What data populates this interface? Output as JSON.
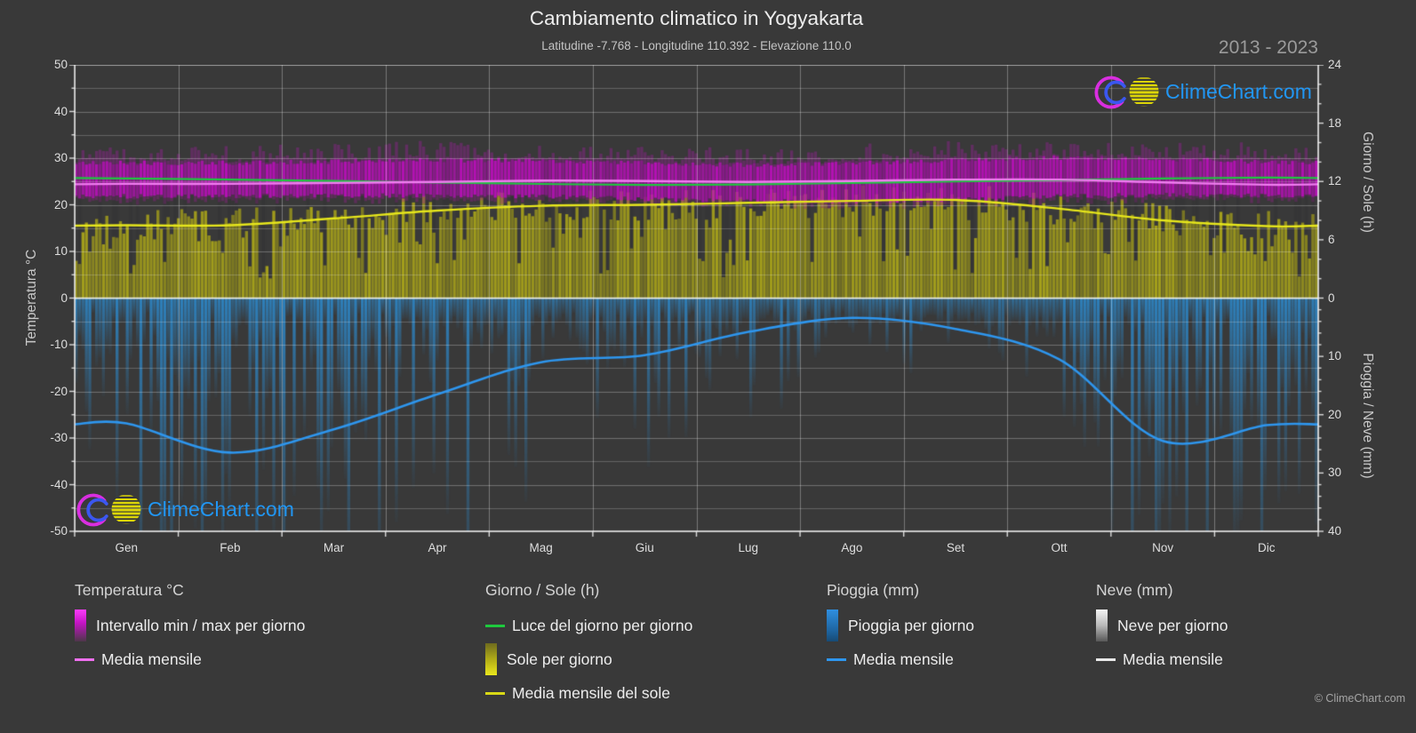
{
  "colors": {
    "background": "#393939",
    "brand_blue": "#2196f3",
    "logo_magenta": "#d92ee0",
    "logo_blue": "#3b57f0",
    "logo_yellow": "#ddd608",
    "temp_band": "#bc0ebc",
    "temp_mean_line": "#f07df0",
    "daylight_line": "#1ec93e",
    "sun_fill": "#a7a21a",
    "sun_mean_line": "#e6e61c",
    "rain_fill": "#2d87c8",
    "rain_mean_line": "#2e96ee",
    "snow_fill": "#e8e8e8",
    "snow_mean_line": "#e8e8e8"
  },
  "header": {
    "title": "Cambiamento climatico in Yogyakarta",
    "subtitle": "Latitudine -7.768 - Longitudine 110.392 - Elevazione 110.0",
    "year_range": "2013 - 2023"
  },
  "watermark": {
    "text": "ClimeChart.com"
  },
  "footer": {
    "copyright": "© ClimeChart.com"
  },
  "axes": {
    "left": {
      "title": "Temperatura °C",
      "range": [
        -50,
        50
      ],
      "major_ticks": [
        50,
        40,
        30,
        20,
        10,
        0,
        -10,
        -20,
        -30,
        -40,
        -50
      ]
    },
    "right_top": {
      "title": "Giorno / Sole (h)",
      "range": [
        0,
        24
      ],
      "major_ticks": [
        24,
        18,
        12,
        6,
        0
      ]
    },
    "right_bottom": {
      "title": "Pioggia / Neve (mm)",
      "range": [
        0,
        40
      ],
      "inverted": true,
      "major_ticks": [
        10,
        20,
        30,
        40
      ]
    },
    "x": {
      "gridlines": "month-boundaries"
    }
  },
  "legend": {
    "groups": [
      {
        "title": "Temperatura °C",
        "items": [
          {
            "kind": "box",
            "swatch": "magenta-gradient",
            "label": "Intervallo min / max per giorno"
          },
          {
            "kind": "line",
            "swatch": "magenta-line",
            "label": "Media mensile"
          }
        ]
      },
      {
        "title": "Giorno / Sole (h)",
        "items": [
          {
            "kind": "line",
            "swatch": "green-line",
            "label": "Luce del giorno per giorno"
          },
          {
            "kind": "box",
            "swatch": "yellow-gradient",
            "label": "Sole per giorno"
          },
          {
            "kind": "line",
            "swatch": "yellow-line",
            "label": "Media mensile del sole"
          }
        ]
      },
      {
        "title": "Pioggia (mm)",
        "items": [
          {
            "kind": "box",
            "swatch": "blue-gradient",
            "label": "Pioggia per giorno"
          },
          {
            "kind": "line",
            "swatch": "blue-line",
            "label": "Media mensile"
          }
        ]
      },
      {
        "title": "Neve (mm)",
        "items": [
          {
            "kind": "box",
            "swatch": "white-gradient",
            "label": "Neve per giorno"
          },
          {
            "kind": "line",
            "swatch": "white-line",
            "label": "Media mensile"
          }
        ]
      }
    ]
  },
  "chart_data": {
    "type": "area",
    "title": "Cambiamento climatico in Yogyakarta",
    "categories": [
      "Gen",
      "Feb",
      "Mar",
      "Apr",
      "Mag",
      "Giu",
      "Lug",
      "Ago",
      "Set",
      "Ott",
      "Nov",
      "Dic"
    ],
    "axis_ranges": {
      "temperatura_c": [
        -50,
        50
      ],
      "giorno_sole_h": [
        0,
        24
      ],
      "pioggia_neve_mm": [
        0,
        40
      ]
    },
    "grid": {
      "horizontal_step_c": 5,
      "vertical": "month-boundaries"
    },
    "series": [
      {
        "name": "Luce del giorno per giorno",
        "unit": "h",
        "type": "line",
        "color": "#1ec93e",
        "values": [
          12.3,
          12.2,
          12.05,
          11.9,
          11.75,
          11.65,
          11.7,
          11.85,
          12.0,
          12.15,
          12.3,
          12.4
        ]
      },
      {
        "name": "Media mensile temperatura",
        "unit": "°C",
        "type": "line",
        "color": "#f07df0",
        "values": [
          24.5,
          24.5,
          24.7,
          24.9,
          25.2,
          25.1,
          24.9,
          25.1,
          25.4,
          25.4,
          24.8,
          24.3
        ]
      },
      {
        "name": "Media mensile del sole",
        "unit": "h",
        "type": "line",
        "color": "#e6e61c",
        "values": [
          7.5,
          7.5,
          8.2,
          9.0,
          9.5,
          9.6,
          9.8,
          10.0,
          10.1,
          9.2,
          8.0,
          7.4
        ]
      },
      {
        "name": "Media mensile pioggia",
        "unit": "mm",
        "type": "line",
        "color": "#2e96ee",
        "values": [
          21.5,
          26.5,
          22.5,
          16.5,
          11.0,
          9.8,
          5.8,
          3.4,
          5.3,
          10.5,
          24.5,
          21.8
        ]
      },
      {
        "name": "Media mensile neve",
        "unit": "mm",
        "type": "line",
        "color": "#e8e8e8",
        "values": [
          0,
          0,
          0,
          0,
          0,
          0,
          0,
          0,
          0,
          0,
          0,
          0
        ]
      },
      {
        "name": "Intervallo min / max per giorno (massima)",
        "unit": "°C",
        "type": "band-upper",
        "color": "#bc0ebc",
        "values": [
          29.0,
          29.0,
          29.3,
          29.6,
          29.5,
          29.0,
          28.6,
          28.9,
          29.6,
          30.1,
          29.9,
          29.2
        ]
      },
      {
        "name": "Intervallo min / max per giorno (minima)",
        "unit": "°C",
        "type": "band-lower",
        "color": "#bc0ebc",
        "values": [
          21.8,
          21.8,
          21.9,
          22.0,
          21.8,
          21.2,
          20.7,
          20.7,
          21.1,
          21.8,
          22.1,
          21.9
        ]
      },
      {
        "name": "Sole per giorno (media dei giorni)",
        "unit": "h",
        "type": "daily-bars",
        "color": "#a7a21a",
        "values": [
          7.5,
          7.5,
          8.2,
          9.0,
          9.5,
          9.6,
          9.8,
          10.0,
          10.1,
          9.2,
          8.0,
          7.4
        ]
      },
      {
        "name": "Pioggia per giorno (media dei giorni)",
        "unit": "mm",
        "type": "daily-bars",
        "color": "#2d87c8",
        "values": [
          21.5,
          26.5,
          22.5,
          16.5,
          11.0,
          9.8,
          5.8,
          3.4,
          5.3,
          10.5,
          24.5,
          21.8
        ]
      },
      {
        "name": "Neve per giorno",
        "unit": "mm",
        "type": "daily-bars",
        "color": "#e8e8e8",
        "values": [
          0,
          0,
          0,
          0,
          0,
          0,
          0,
          0,
          0,
          0,
          0,
          0
        ]
      }
    ]
  }
}
